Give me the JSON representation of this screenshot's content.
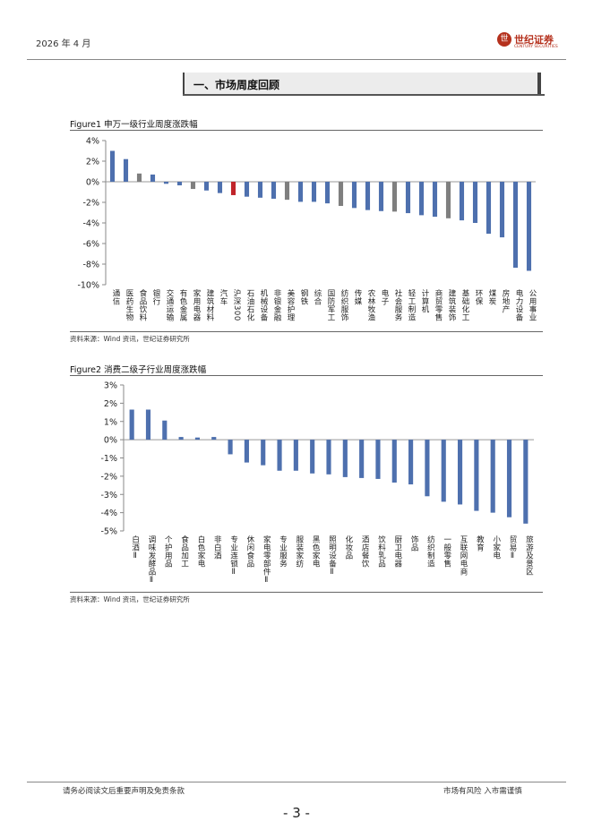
{
  "header": {
    "date": "2026 年 4 月",
    "logo_cn": "世纪证券",
    "logo_en": "CENTURY SECURITIES",
    "logo_mark": "世"
  },
  "section": {
    "title": "一、市场周度回顾"
  },
  "figure1": {
    "title": "Figure1 申万一级行业周度涨跌幅",
    "source": "资料来源：Wind 资讯，世纪证券研究所"
  },
  "figure2": {
    "title": "Figure2 消费二级子行业周度涨跌幅",
    "source": "资料来源：Wind 资讯，世纪证券研究所"
  },
  "footer": {
    "left": "请务必阅读文后重要声明及免责条款",
    "right": "市场有风险 入市需谨慎",
    "page": "- 3 -"
  },
  "chart_data": [
    {
      "type": "bar",
      "title": "Figure1 申万一级行业周度涨跌幅",
      "ylim": [
        -10,
        4
      ],
      "yticks": [
        4,
        2,
        0,
        -2,
        -4,
        -6,
        -8,
        -10
      ],
      "ytick_labels": [
        "4%",
        "2%",
        "0%",
        "-2%",
        "-4%",
        "-6%",
        "-8%",
        "-10%"
      ],
      "categories": [
        "通信",
        "医药生物",
        "食品饮料",
        "银行",
        "交通运输",
        "有色金属",
        "家用电器",
        "建筑材料",
        "汽车",
        "沪深300",
        "石油石化",
        "机械设备",
        "非银金融",
        "美容护理",
        "钢铁",
        "综合",
        "国防军工",
        "纺织服饰",
        "传媒",
        "农林牧渔",
        "电子",
        "社会服务",
        "轻工制造",
        "计算机",
        "商贸零售",
        "建筑装饰",
        "基础化工",
        "环保",
        "煤炭",
        "房地产",
        "电力设备",
        "公用事业"
      ],
      "values": [
        3.0,
        2.2,
        0.8,
        0.7,
        -0.2,
        -0.35,
        -0.7,
        -0.85,
        -1.1,
        -1.3,
        -1.45,
        -1.55,
        -1.65,
        -1.75,
        -1.95,
        -1.95,
        -2.1,
        -2.35,
        -2.55,
        -2.75,
        -2.85,
        -2.9,
        -3.05,
        -3.25,
        -3.4,
        -3.55,
        -3.75,
        -4.0,
        -5.05,
        -5.4,
        -8.35,
        -8.65
      ],
      "colors": [
        "#4e70ae",
        "#4e70ae",
        "#7f7f7f",
        "#4e70ae",
        "#4e70ae",
        "#4e70ae",
        "#7f7f7f",
        "#4e70ae",
        "#4e70ae",
        "#c0242a",
        "#4e70ae",
        "#4e70ae",
        "#4e70ae",
        "#7f7f7f",
        "#4e70ae",
        "#4e70ae",
        "#4e70ae",
        "#7f7f7f",
        "#4e70ae",
        "#4e70ae",
        "#4e70ae",
        "#7f7f7f",
        "#4e70ae",
        "#4e70ae",
        "#4e70ae",
        "#7f7f7f",
        "#4e70ae",
        "#4e70ae",
        "#4e70ae",
        "#4e70ae",
        "#4e70ae",
        "#4e70ae"
      ]
    },
    {
      "type": "bar",
      "title": "Figure2 消费二级子行业周度涨跌幅",
      "ylim": [
        -5,
        3
      ],
      "yticks": [
        3,
        2,
        1,
        0,
        -1,
        -2,
        -3,
        -4,
        -5
      ],
      "ytick_labels": [
        "3%",
        "2%",
        "1%",
        "0%",
        "-1%",
        "-2%",
        "-3%",
        "-4%",
        "-5%"
      ],
      "categories": [
        "白酒Ⅱ",
        "调味发酵品Ⅱ",
        "个护用品",
        "食品加工",
        "白色家电",
        "非白酒",
        "专业连锁Ⅱ",
        "休闲食品",
        "家电零部件Ⅱ",
        "专业服务",
        "服装家纺",
        "黑色家电",
        "照明设备Ⅱ",
        "化妆品",
        "酒店餐饮",
        "饮料乳品",
        "厨卫电器",
        "饰品",
        "纺织制造",
        "一般零售",
        "互联网电商",
        "教育",
        "小家电",
        "贸易Ⅱ",
        "旅游及景区"
      ],
      "values": [
        1.65,
        1.65,
        1.05,
        0.15,
        0.12,
        0.15,
        -0.8,
        -1.25,
        -1.4,
        -1.7,
        -1.7,
        -1.85,
        -1.9,
        -2.05,
        -2.1,
        -2.15,
        -2.35,
        -2.45,
        -3.1,
        -3.4,
        -3.55,
        -3.9,
        -4.0,
        -4.25,
        -4.6
      ],
      "color": "#4e70ae"
    }
  ]
}
